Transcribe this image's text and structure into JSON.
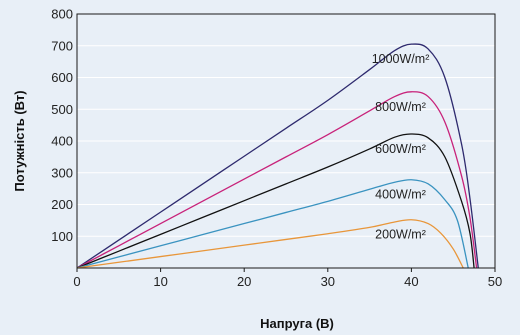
{
  "chart_data": {
    "type": "line",
    "title": "",
    "xlabel": "Напруга (В)",
    "ylabel": "Потужність (Вт)",
    "xlim": [
      0,
      50
    ],
    "ylim": [
      0,
      800
    ],
    "xticks": [
      "0",
      "10",
      "20",
      "30",
      "40",
      "50"
    ],
    "yticks": [
      "100",
      "200",
      "300",
      "400",
      "500",
      "600",
      "700",
      "800"
    ],
    "grid": true,
    "legend": "inline labels near curve peaks",
    "series": [
      {
        "name": "1000W/m²",
        "color": "#2e2a6e",
        "x": [
          0,
          5,
          10,
          15,
          20,
          25,
          30,
          35,
          38,
          40,
          42,
          44,
          46,
          47,
          48
        ],
        "y": [
          0,
          88,
          176,
          264,
          352,
          440,
          528,
          625,
          685,
          705,
          690,
          600,
          390,
          220,
          0
        ]
      },
      {
        "name": "800W/m²",
        "color": "#c8227a",
        "x": [
          0,
          5,
          10,
          15,
          20,
          25,
          30,
          35,
          38,
          40,
          42,
          44,
          46,
          47,
          47.8
        ],
        "y": [
          0,
          70,
          140,
          210,
          280,
          350,
          420,
          495,
          540,
          555,
          540,
          460,
          290,
          160,
          0
        ]
      },
      {
        "name": "600W/m²",
        "color": "#111111",
        "x": [
          0,
          5,
          10,
          15,
          20,
          25,
          30,
          35,
          38,
          40,
          42,
          44,
          46,
          47,
          47.5
        ],
        "y": [
          0,
          53,
          106,
          159,
          212,
          265,
          318,
          375,
          412,
          422,
          410,
          350,
          210,
          110,
          0
        ]
      },
      {
        "name": "400W/m²",
        "color": "#3a93c0",
        "x": [
          0,
          5,
          10,
          15,
          20,
          25,
          30,
          35,
          38,
          40,
          42,
          44,
          45.5,
          46.8
        ],
        "y": [
          0,
          35,
          70,
          105,
          140,
          175,
          210,
          248,
          270,
          278,
          265,
          215,
          150,
          0
        ]
      },
      {
        "name": "200W/m²",
        "color": "#e8963a",
        "x": [
          0,
          5,
          10,
          15,
          20,
          25,
          30,
          35,
          38,
          40,
          42,
          43.5,
          45,
          46.2
        ],
        "y": [
          0,
          18,
          36,
          54,
          72,
          90,
          108,
          128,
          145,
          152,
          140,
          110,
          60,
          0
        ]
      }
    ]
  }
}
